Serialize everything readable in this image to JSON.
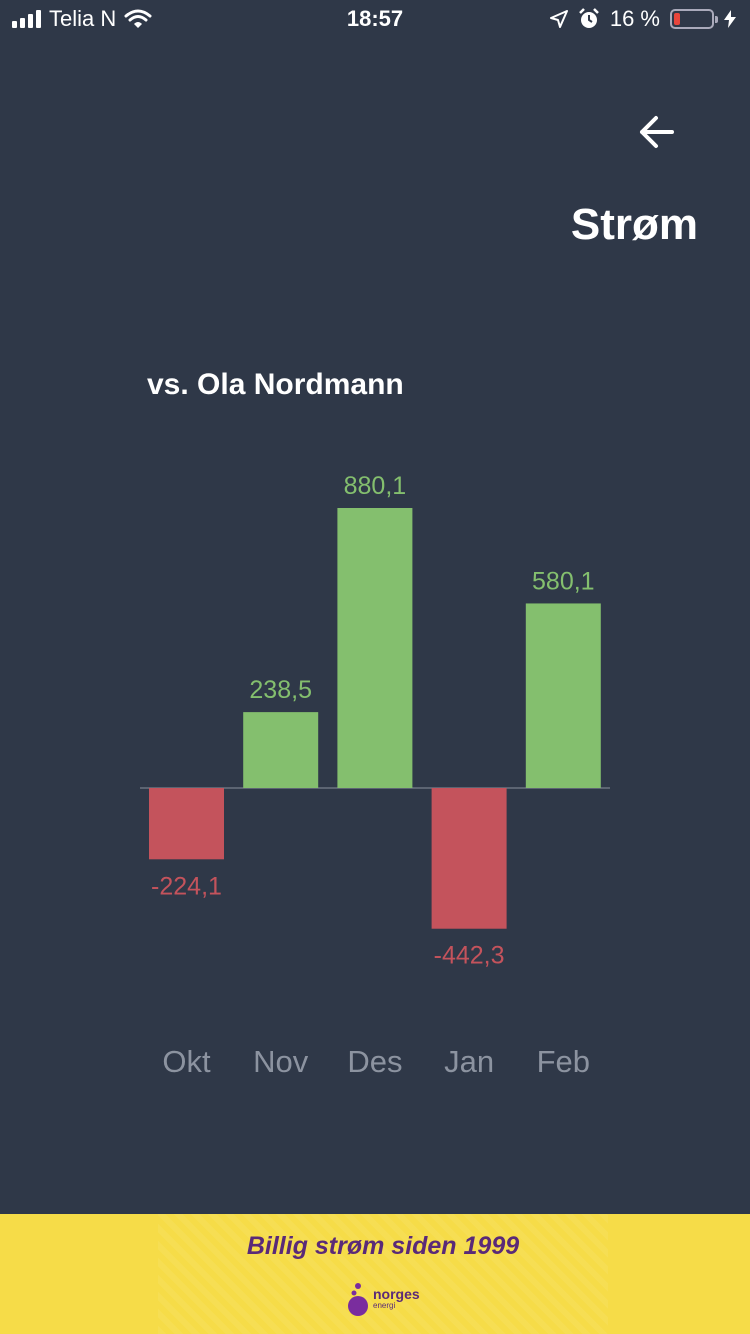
{
  "status_bar": {
    "carrier": "Telia N",
    "time": "18:57",
    "battery_percent": "16 %",
    "battery_level": 0.16
  },
  "header": {
    "back_icon": "arrow-left-icon",
    "title": "Strøm"
  },
  "comparison": {
    "subtitle": "vs. Ola Nordmann"
  },
  "colors": {
    "background": "#2f3848",
    "positive": "#84bf6e",
    "negative": "#c4535c",
    "axis_label": "#8c93a0",
    "ad_background": "#f6dc48",
    "ad_text": "#5a2a78"
  },
  "chart_data": {
    "type": "bar",
    "categories": [
      "Okt",
      "Nov",
      "Des",
      "Jan",
      "Feb"
    ],
    "values": [
      -224.1,
      238.5,
      880.1,
      -442.3,
      580.1
    ],
    "value_labels": [
      "-224,1",
      "238,5",
      "880,1",
      "-442,3",
      "580,1"
    ],
    "ylim": [
      -442.3,
      880.1
    ],
    "grid": false,
    "legend": "none"
  },
  "ad": {
    "slogan": "Billig strøm siden 1999",
    "logo_text": "norges",
    "logo_subtext": "energi"
  }
}
